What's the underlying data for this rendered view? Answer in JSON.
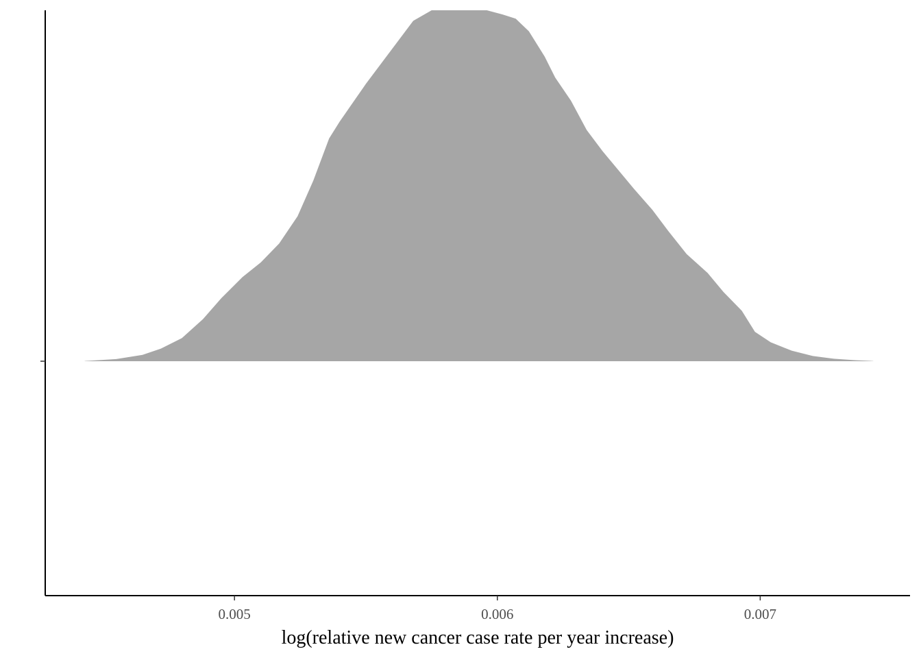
{
  "chart_data": {
    "type": "area",
    "subtype": "density",
    "title": "",
    "xlabel": "log(relative new cancer case rate per year increase)",
    "ylabel": "",
    "xlim": [
      0.00428,
      0.00757
    ],
    "ylim": [
      0,
      1.67
    ],
    "x_ticks": [
      0.005,
      0.006,
      0.007
    ],
    "x_tick_labels": [
      "0.005",
      "0.006",
      "0.007"
    ],
    "y_ticks": [
      0
    ],
    "grid": false,
    "legend": "none",
    "fill_color": "#a6a6a6",
    "axis_color": "#000000",
    "series": [
      {
        "x": [
          0.00443,
          0.00455,
          0.00465,
          0.00472,
          0.0048,
          0.00488,
          0.00495,
          0.00503,
          0.0051,
          0.00517,
          0.00524,
          0.0053,
          0.00536,
          0.0054,
          0.00545,
          0.0055,
          0.00556,
          0.00562,
          0.00568,
          0.00575,
          0.00578,
          0.00583,
          0.0059,
          0.00596,
          0.00602,
          0.00607,
          0.00612,
          0.00618,
          0.00622,
          0.00628,
          0.00634,
          0.0064,
          0.00646,
          0.00652,
          0.00659,
          0.00665,
          0.00672,
          0.0068,
          0.00686,
          0.00693,
          0.00698,
          0.00704,
          0.00712,
          0.0072,
          0.00728,
          0.00736,
          0.00743
        ],
        "y": [
          0.001,
          0.01,
          0.03,
          0.06,
          0.11,
          0.2,
          0.3,
          0.4,
          0.47,
          0.56,
          0.69,
          0.86,
          1.06,
          1.14,
          1.23,
          1.32,
          1.42,
          1.52,
          1.62,
          1.67,
          1.67,
          1.67,
          1.67,
          1.67,
          1.65,
          1.63,
          1.57,
          1.45,
          1.35,
          1.24,
          1.1,
          1.0,
          0.91,
          0.82,
          0.72,
          0.62,
          0.51,
          0.42,
          0.33,
          0.24,
          0.14,
          0.09,
          0.05,
          0.025,
          0.012,
          0.005,
          0.001
        ]
      }
    ]
  }
}
